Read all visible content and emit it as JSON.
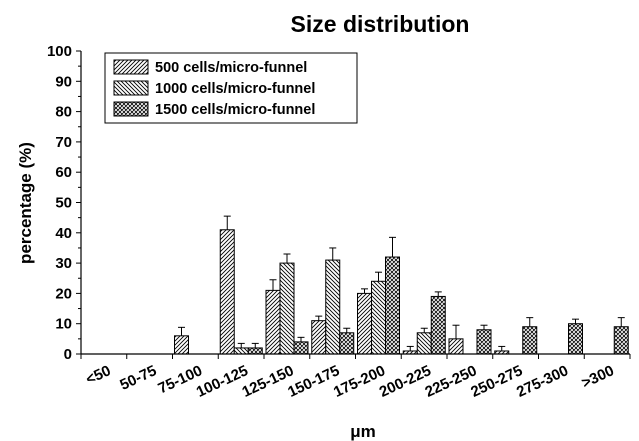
{
  "chart_data": {
    "type": "bar",
    "title": "Size distribution",
    "xlabel": "μm",
    "ylabel": "percentage (%)",
    "ylim": [
      0,
      100
    ],
    "yticks": [
      0,
      10,
      20,
      30,
      40,
      50,
      60,
      70,
      80,
      90,
      100
    ],
    "categories": [
      "<50",
      "50-75",
      "75-100",
      "100-125",
      "125-150",
      "150-175",
      "175-200",
      "200-225",
      "225-250",
      "250-275",
      "275-300",
      ">300"
    ],
    "legend_position": "top-left",
    "series": [
      {
        "name": "500 cells/micro-funnel",
        "hatch": "forward-diagonal",
        "values": [
          0,
          0,
          6,
          41,
          21,
          11,
          20,
          1,
          5,
          1,
          0,
          0
        ],
        "errors": [
          0,
          0,
          2.8,
          4.5,
          3.5,
          1.5,
          1.5,
          1.5,
          4.5,
          1.5,
          0,
          0
        ]
      },
      {
        "name": "1000 cells/micro-funnel",
        "hatch": "back-diagonal",
        "values": [
          0,
          0,
          0,
          2,
          30,
          31,
          24,
          7,
          0,
          0,
          0,
          0
        ],
        "errors": [
          0,
          0,
          0,
          1.5,
          3,
          4,
          3,
          1.5,
          0,
          0,
          0,
          0
        ]
      },
      {
        "name": "1500 cells/micro-funnel",
        "hatch": "crosshatch",
        "values": [
          0,
          0,
          0,
          2,
          4,
          7,
          32,
          19,
          8,
          9,
          10,
          9
        ],
        "errors": [
          0,
          0,
          0,
          1.5,
          1.5,
          1.5,
          6.5,
          1.5,
          1.5,
          3,
          1.5,
          3
        ]
      }
    ]
  }
}
